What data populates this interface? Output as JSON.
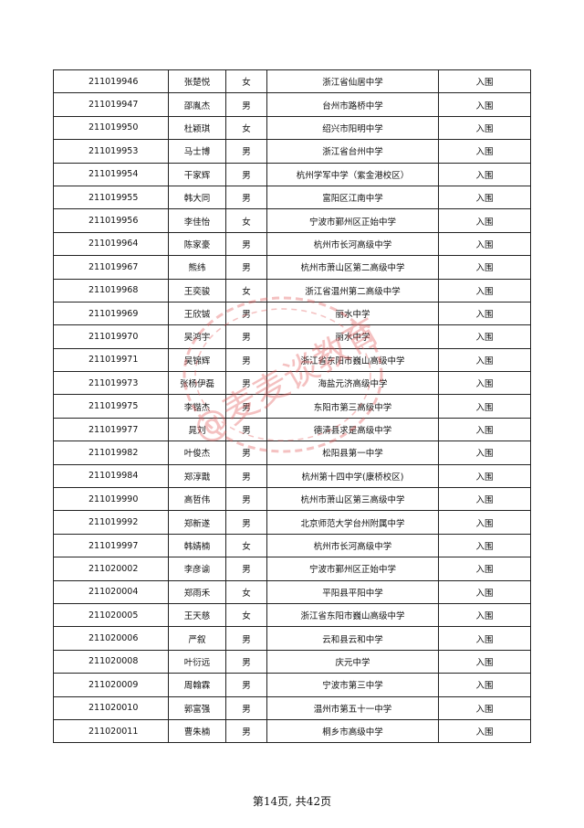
{
  "rows": [
    [
      "211019946",
      "张楚悦",
      "女",
      "浙江省仙居中学",
      "入围"
    ],
    [
      "211019947",
      "邵胤杰",
      "男",
      "台州市路桥中学",
      "入围"
    ],
    [
      "211019950",
      "杜颖琪",
      "女",
      "绍兴市阳明中学",
      "入围"
    ],
    [
      "211019953",
      "马士博",
      "男",
      "浙江省台州中学",
      "入围"
    ],
    [
      "211019954",
      "干家辉",
      "男",
      "杭州学军中学（紫金港校区）",
      "入围"
    ],
    [
      "211019955",
      "韩大同",
      "男",
      "富阳区江南中学",
      "入围"
    ],
    [
      "211019956",
      "李佳怡",
      "女",
      "宁波市鄞州区正始中学",
      "入围"
    ],
    [
      "211019964",
      "陈家豪",
      "男",
      "杭州市长河高级中学",
      "入围"
    ],
    [
      "211019967",
      "熊纬",
      "男",
      "杭州市萧山区第二高级中学",
      "入围"
    ],
    [
      "211019968",
      "王奕骏",
      "女",
      "浙江省温州第二高级中学",
      "入围"
    ],
    [
      "211019969",
      "王欣铖",
      "男",
      "丽水中学",
      "入围"
    ],
    [
      "211019970",
      "吴鸿宇",
      "男",
      "丽水中学",
      "入围"
    ],
    [
      "211019971",
      "吴锦辉",
      "男",
      "浙江省东阳市巍山高级中学",
      "入围"
    ],
    [
      "211019973",
      "张杨伊磊",
      "男",
      "海盐元济高级中学",
      "入围"
    ],
    [
      "211019975",
      "李锴杰",
      "男",
      "东阳市第三高级中学",
      "入围"
    ],
    [
      "211019977",
      "晁刘",
      "男",
      "德清县求是高级中学",
      "入围"
    ],
    [
      "211019982",
      "叶俊杰",
      "男",
      "松阳县第一中学",
      "入围"
    ],
    [
      "211019984",
      "郑淳戬",
      "男",
      "杭州第十四中学(康桥校区)",
      "入围"
    ],
    [
      "211019990",
      "高哲伟",
      "男",
      "杭州市萧山区第三高级中学",
      "入围"
    ],
    [
      "211019992",
      "郑新遂",
      "男",
      "北京师范大学台州附属中学",
      "入围"
    ],
    [
      "211019997",
      "韩婧楠",
      "女",
      "杭州市长河高级中学",
      "入围"
    ],
    [
      "211020002",
      "李彦谕",
      "男",
      "宁波市鄞州区正始中学",
      "入围"
    ],
    [
      "211020004",
      "郑雨禾",
      "女",
      "平阳县平阳中学",
      "入围"
    ],
    [
      "211020005",
      "王天慈",
      "女",
      "浙江省东阳市巍山高级中学",
      "入围"
    ],
    [
      "211020006",
      "严叙",
      "男",
      "云和县云和中学",
      "入围"
    ],
    [
      "211020008",
      "叶衍远",
      "男",
      "庆元中学",
      "入围"
    ],
    [
      "211020009",
      "周翰霖",
      "男",
      "宁波市第三中学",
      "入围"
    ],
    [
      "211020010",
      "郭富强",
      "男",
      "温州市第五十一中学",
      "入围"
    ],
    [
      "211020011",
      "曹朱楠",
      "男",
      "桐乡市高级中学",
      "入围"
    ]
  ],
  "watermark": {
    "text": "@麦麦谈教育",
    "color": "#e05050"
  },
  "footer": "第14页, 共42页"
}
